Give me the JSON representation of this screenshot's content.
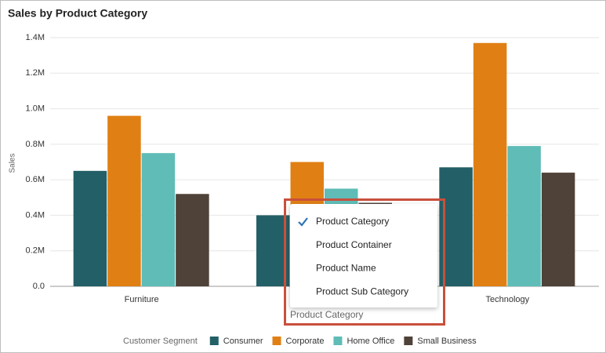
{
  "chart_data": {
    "type": "bar",
    "title": "Sales by Product Category",
    "y_label": "Sales",
    "x_label": "Product Category",
    "categories": [
      "Furniture",
      null,
      "Technology"
    ],
    "series": [
      {
        "name": "Consumer",
        "color": "#235f66",
        "values": [
          650000,
          400000,
          670000
        ]
      },
      {
        "name": "Corporate",
        "color": "#e08014",
        "values": [
          960000,
          700000,
          1370000
        ]
      },
      {
        "name": "Home Office",
        "color": "#5fbcb7",
        "values": [
          750000,
          550000,
          790000
        ]
      },
      {
        "name": "Small Business",
        "color": "#4f4239",
        "values": [
          520000,
          470000,
          640000
        ]
      }
    ],
    "legend_title": "Customer Segment",
    "legend": "bottom",
    "ylim": [
      0,
      1400000
    ],
    "yticks": [
      {
        "value": 0,
        "label": "0.0"
      },
      {
        "value": 200000,
        "label": "0.2M"
      },
      {
        "value": 400000,
        "label": "0.4M"
      },
      {
        "value": 600000,
        "label": "0.6M"
      },
      {
        "value": 800000,
        "label": "0.8M"
      },
      {
        "value": 1000000,
        "label": "1.0M"
      },
      {
        "value": 1200000,
        "label": "1.2M"
      },
      {
        "value": 1400000,
        "label": "1.4M"
      }
    ],
    "grid": true
  },
  "menu": {
    "items": [
      "Product Category",
      "Product Container",
      "Product Name",
      "Product Sub Category"
    ],
    "selected": 0
  }
}
